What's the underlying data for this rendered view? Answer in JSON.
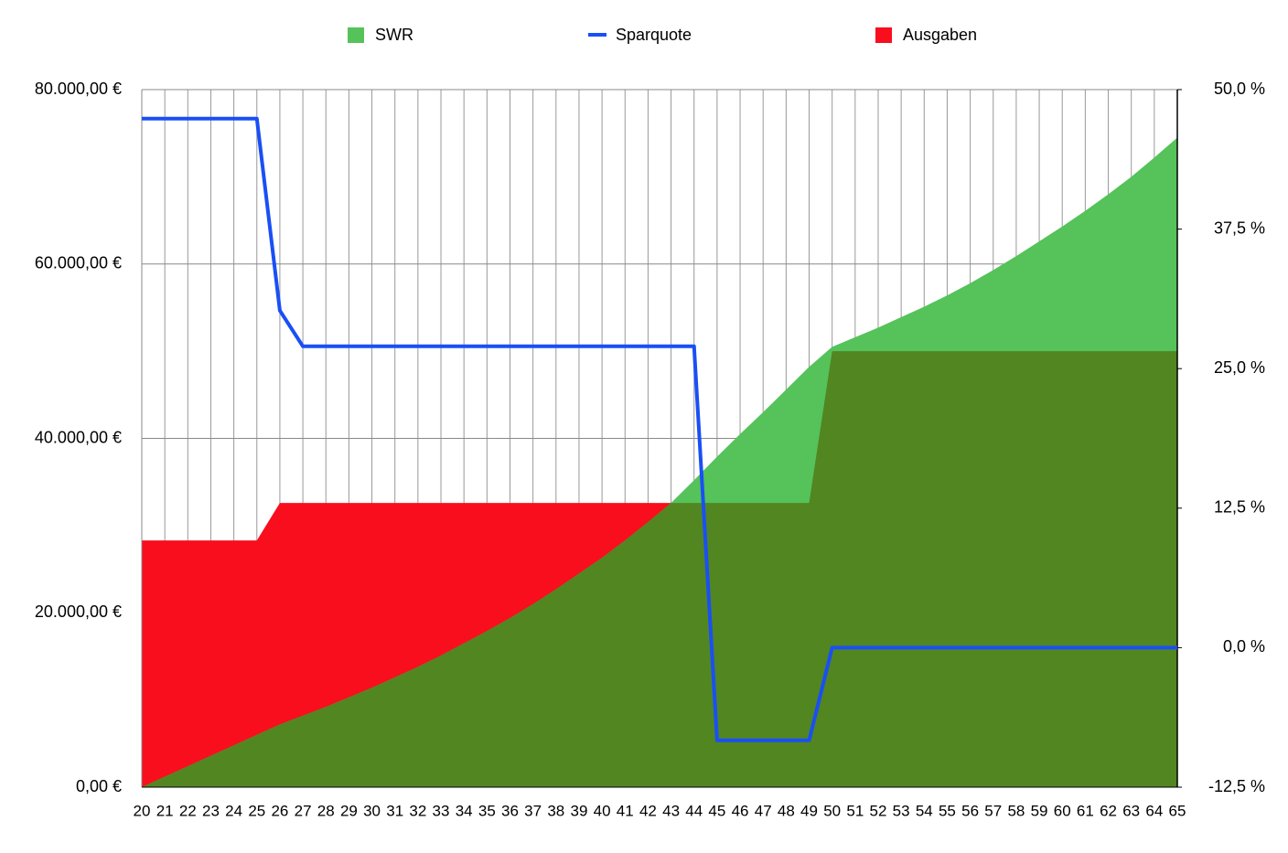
{
  "chart_data": {
    "type": "area-line",
    "categories": [
      "20",
      "21",
      "22",
      "23",
      "24",
      "25",
      "26",
      "27",
      "28",
      "29",
      "30",
      "31",
      "32",
      "33",
      "34",
      "35",
      "36",
      "37",
      "38",
      "39",
      "40",
      "41",
      "42",
      "43",
      "44",
      "45",
      "46",
      "47",
      "48",
      "49",
      "50",
      "51",
      "52",
      "53",
      "54",
      "55",
      "56",
      "57",
      "58",
      "59",
      "60",
      "61",
      "62",
      "63",
      "64",
      "65"
    ],
    "series": [
      {
        "name": "SWR",
        "color": "#55c25a",
        "kind": "area",
        "values": [
          0,
          1200,
          2400,
          3600,
          4800,
          6000,
          7200,
          8200,
          9200,
          10300,
          11400,
          12600,
          13800,
          15100,
          16500,
          17900,
          19400,
          21000,
          22700,
          24500,
          26300,
          28300,
          30400,
          32600,
          35200,
          37900,
          40500,
          43000,
          45600,
          48200,
          50500,
          51600,
          52700,
          53900,
          55100,
          56400,
          57800,
          59300,
          60900,
          62600,
          64300,
          66100,
          68000,
          70000,
          72200,
          74500
        ]
      },
      {
        "name": "Sparquote",
        "color": "#1a4ff5",
        "kind": "line",
        "axis": "y2",
        "values": [
          47.4,
          47.4,
          47.4,
          47.4,
          47.4,
          47.4,
          30.2,
          27,
          27,
          27,
          27,
          27,
          27,
          27,
          27,
          27,
          27,
          27,
          27,
          27,
          27,
          27,
          27,
          27,
          27,
          -8.3,
          -8.3,
          -8.3,
          -8.3,
          -8.3,
          0,
          0,
          0,
          0,
          0,
          0,
          0,
          0,
          0,
          0,
          0,
          0,
          0,
          0,
          0,
          0
        ]
      },
      {
        "name": "Ausgaben",
        "color": "#f90e1e",
        "kind": "area",
        "values": [
          28300,
          28300,
          28300,
          28300,
          28300,
          28300,
          32600,
          32600,
          32600,
          32600,
          32600,
          32600,
          32600,
          32600,
          32600,
          32600,
          32600,
          32600,
          32600,
          32600,
          32600,
          32600,
          32600,
          32600,
          32600,
          32600,
          32600,
          32600,
          32600,
          32600,
          50000,
          50000,
          50000,
          50000,
          50000,
          50000,
          50000,
          50000,
          50000,
          50000,
          50000,
          50000,
          50000,
          50000,
          50000,
          50000
        ]
      }
    ],
    "ylim": [
      0,
      80000
    ],
    "yticks": [
      {
        "value": 0,
        "label": "0,00 €"
      },
      {
        "value": 20000,
        "label": "20.000,00 €"
      },
      {
        "value": 40000,
        "label": "40.000,00 €"
      },
      {
        "value": 60000,
        "label": "60.000,00 €"
      },
      {
        "value": 80000,
        "label": "80.000,00 €"
      }
    ],
    "y2lim": [
      -12.5,
      50
    ],
    "y2ticks": [
      {
        "value": -12.5,
        "label": "-12,5 %"
      },
      {
        "value": 0,
        "label": "0,0 %"
      },
      {
        "value": 12.5,
        "label": "12,5 %"
      },
      {
        "value": 25,
        "label": "25,0 %"
      },
      {
        "value": 37.5,
        "label": "37,5 %"
      },
      {
        "value": 50,
        "label": "50,0 %"
      }
    ],
    "grid": true,
    "legend": "top"
  }
}
